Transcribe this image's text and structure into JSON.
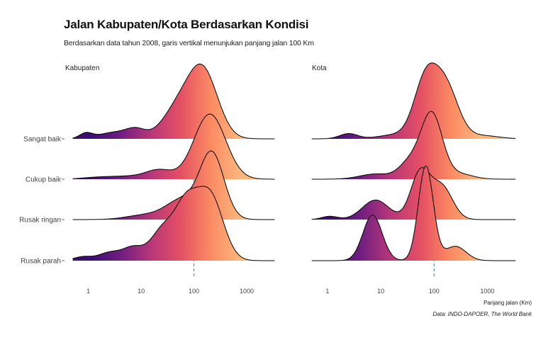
{
  "title": "Jalan Kabupaten/Kota Berdasarkan Kondisi",
  "subtitle": "Berdasarkan data tahun 2008, garis vertikal menunjukan panjang jalan 100 Km",
  "caption": "Data: INDO-DAPOER, The World Bank",
  "chart_data": {
    "type": "ridgeline",
    "xlabel": "Panjang jalan (Km)",
    "x_scale": "log10",
    "xlim": [
      0.4,
      5000
    ],
    "x_ticks": [
      1,
      10,
      100,
      1000
    ],
    "x_tick_labels": [
      "1",
      "10",
      "100",
      "1000"
    ],
    "reference_line_x": 100,
    "categories": [
      "Sangat baik",
      "Cukup baik",
      "Rusak ringan",
      "Rusak parah"
    ],
    "colors": {
      "gradient": [
        "#3b0f70",
        "#721f81",
        "#b73779",
        "#e44f64",
        "#fb8861",
        "#fcb57c"
      ],
      "ref_line": "#4a9a8c",
      "outline": "#000000"
    },
    "panels": [
      {
        "name": "Kabupaten",
        "series": [
          {
            "name": "Sangat baik",
            "peak_x": 150,
            "peaks": [
              [
                0.9,
                0.08,
                0.12
              ],
              [
                3.2,
                0.1,
                0.3
              ],
              [
                8,
                0.12,
                0.18
              ],
              [
                50,
                0.45,
                0.3
              ],
              [
                150,
                1.0,
                0.28
              ]
            ]
          },
          {
            "name": "Cukup baik",
            "peak_x": 200,
            "peaks": [
              [
                1.6,
                0.03,
                0.3
              ],
              [
                6,
                0.04,
                0.3
              ],
              [
                22,
                0.14,
                0.25
              ],
              [
                200,
                1.0,
                0.3
              ]
            ]
          },
          {
            "name": "Rusak ringan",
            "peak_x": 220,
            "peaks": [
              [
                12,
                0.07,
                0.35
              ],
              [
                60,
                0.3,
                0.3
              ],
              [
                220,
                1.0,
                0.23
              ]
            ]
          },
          {
            "name": "Rusak parah",
            "peak_x": 200,
            "peaks": [
              [
                0.8,
                0.06,
                0.18
              ],
              [
                2.5,
                0.12,
                0.2
              ],
              [
                7,
                0.2,
                0.2
              ],
              [
                25,
                0.45,
                0.22
              ],
              [
                70,
                0.8,
                0.22
              ],
              [
                200,
                1.0,
                0.25
              ]
            ]
          }
        ]
      },
      {
        "name": "Kota",
        "series": [
          {
            "name": "Sangat baik",
            "peak_x": 100,
            "peaks": [
              [
                2.5,
                0.08,
                0.17
              ],
              [
                18,
                0.06,
                0.3
              ],
              [
                70,
                0.9,
                0.22
              ],
              [
                170,
                0.75,
                0.23
              ],
              [
                800,
                0.05,
                0.3
              ]
            ]
          },
          {
            "name": "Cukup baik",
            "peak_x": 90,
            "peaks": [
              [
                8,
                0.08,
                0.3
              ],
              [
                35,
                0.25,
                0.2
              ],
              [
                90,
                1.0,
                0.2
              ],
              [
                300,
                0.08,
                0.25
              ]
            ]
          },
          {
            "name": "Rusak ringan",
            "peak_x": 55,
            "peaks": [
              [
                1.1,
                0.05,
                0.15
              ],
              [
                8,
                0.3,
                0.25
              ],
              [
                55,
                0.72,
                0.18
              ],
              [
                140,
                0.5,
                0.2
              ]
            ]
          },
          {
            "name": "Rusak parah",
            "peak_x": 70,
            "peaks": [
              [
                7,
                0.7,
                0.18
              ],
              [
                70,
                1.45,
                0.14
              ],
              [
                250,
                0.22,
                0.2
              ]
            ]
          }
        ]
      }
    ]
  }
}
